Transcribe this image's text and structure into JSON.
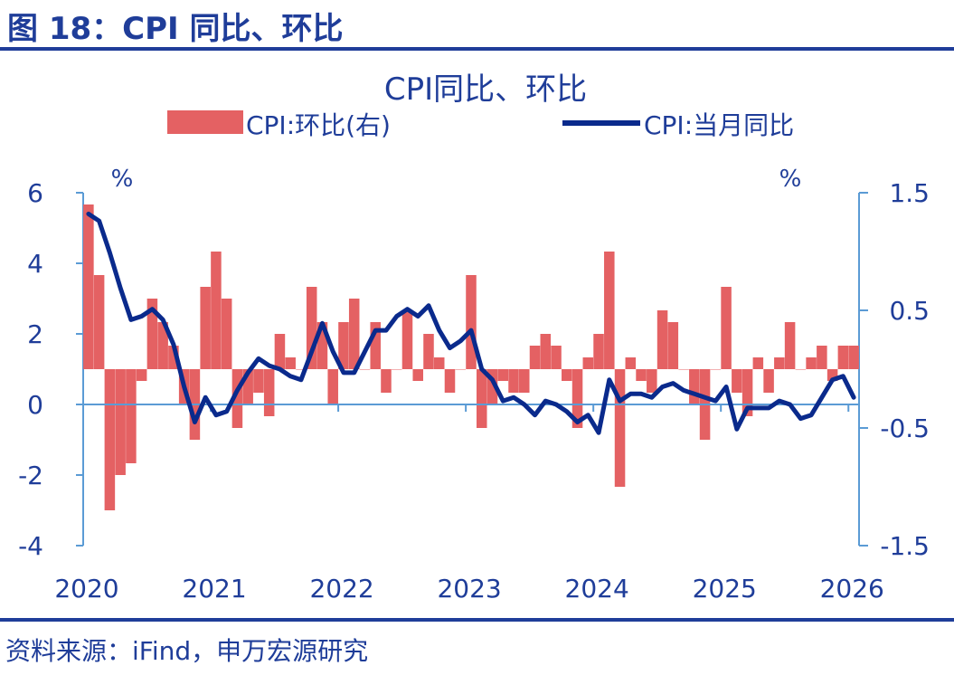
{
  "figure": {
    "title": "图 18：CPI 同比、环比",
    "source": "资料来源：iFind，申万宏源研究"
  },
  "colors": {
    "title": "#1f3d99",
    "bar": "#e46163",
    "line": "#0a2a8c",
    "axis": "#5b9bd5",
    "text": "#1f3d99"
  },
  "chart_data": {
    "type": "bar+line",
    "title": "CPI同比、环比",
    "legend": {
      "placement": "top",
      "entries": [
        "CPI:环比(右)",
        "CPI:当月同比"
      ]
    },
    "left_axis": {
      "unit": "%",
      "ylim": [
        -4,
        6
      ],
      "ticks": [
        "6",
        "4",
        "2",
        "0",
        "-2",
        "-4"
      ]
    },
    "right_axis": {
      "unit": "%",
      "ylim": [
        -1.5,
        1.5
      ],
      "ticks": [
        "1.5",
        "0.5",
        "-0.5",
        "-1.5"
      ]
    },
    "x_ticks": [
      "2020",
      "2021",
      "2022",
      "2023",
      "2024",
      "2025",
      "2026"
    ],
    "months": [
      "2020-01",
      "2020-02",
      "2020-03",
      "2020-04",
      "2020-05",
      "2020-06",
      "2020-07",
      "2020-08",
      "2020-09",
      "2020-10",
      "2020-11",
      "2020-12",
      "2021-01",
      "2021-02",
      "2021-03",
      "2021-04",
      "2021-05",
      "2021-06",
      "2021-07",
      "2021-08",
      "2021-09",
      "2021-10",
      "2021-11",
      "2021-12",
      "2022-01",
      "2022-02",
      "2022-03",
      "2022-04",
      "2022-05",
      "2022-06",
      "2022-07",
      "2022-08",
      "2022-09",
      "2022-10",
      "2022-11",
      "2022-12",
      "2023-01",
      "2023-02",
      "2023-03",
      "2023-04",
      "2023-05",
      "2023-06",
      "2023-07",
      "2023-08",
      "2023-09",
      "2023-10",
      "2023-11",
      "2023-12",
      "2024-01",
      "2024-02",
      "2024-03",
      "2024-04",
      "2024-05",
      "2024-06",
      "2024-07",
      "2024-08",
      "2024-09",
      "2024-10",
      "2024-11",
      "2024-12",
      "2025-01",
      "2025-02",
      "2025-03",
      "2025-04",
      "2025-05",
      "2025-06",
      "2025-07",
      "2025-08",
      "2025-09",
      "2025-10",
      "2025-11",
      "2025-12",
      "2026-01"
    ],
    "series": [
      {
        "name": "CPI:环比(右)",
        "axis": "right",
        "type": "bar",
        "values": [
          1.4,
          0.8,
          -1.2,
          -0.9,
          -0.8,
          -0.1,
          0.6,
          0.4,
          0.2,
          -0.3,
          -0.6,
          0.7,
          1.0,
          0.6,
          -0.5,
          -0.3,
          -0.2,
          -0.4,
          0.3,
          0.1,
          0.0,
          0.7,
          0.4,
          -0.3,
          0.4,
          0.6,
          0.0,
          0.4,
          -0.2,
          0.0,
          0.5,
          -0.1,
          0.3,
          0.1,
          -0.2,
          0.0,
          0.8,
          -0.5,
          -0.3,
          -0.1,
          -0.2,
          -0.2,
          0.2,
          0.3,
          0.2,
          -0.1,
          -0.5,
          0.1,
          0.3,
          1.0,
          -1.0,
          0.1,
          -0.1,
          -0.2,
          0.5,
          0.4,
          0.0,
          -0.3,
          -0.6,
          0.0,
          0.7,
          -0.2,
          -0.4,
          0.1,
          -0.2,
          0.1,
          0.4,
          0.0,
          0.1,
          0.2,
          -0.1,
          0.2,
          0.2
        ]
      },
      {
        "name": "CPI:当月同比",
        "axis": "left",
        "type": "line",
        "values": [
          5.4,
          5.2,
          4.3,
          3.3,
          2.4,
          2.5,
          2.7,
          2.4,
          1.7,
          0.5,
          -0.5,
          0.2,
          -0.3,
          -0.2,
          0.4,
          0.9,
          1.3,
          1.1,
          1.0,
          0.8,
          0.7,
          1.5,
          2.3,
          1.5,
          0.9,
          0.9,
          1.5,
          2.1,
          2.1,
          2.5,
          2.7,
          2.5,
          2.8,
          2.1,
          1.6,
          1.8,
          2.1,
          1.0,
          0.7,
          0.1,
          0.2,
          0.0,
          -0.3,
          0.1,
          0.0,
          -0.2,
          -0.5,
          -0.3,
          -0.8,
          0.7,
          0.1,
          0.3,
          0.3,
          0.2,
          0.5,
          0.6,
          0.4,
          0.3,
          0.2,
          0.1,
          0.5,
          -0.7,
          -0.1,
          -0.1,
          -0.1,
          0.1,
          0.0,
          -0.4,
          -0.3,
          0.2,
          0.7,
          0.8,
          0.2
        ]
      }
    ]
  }
}
